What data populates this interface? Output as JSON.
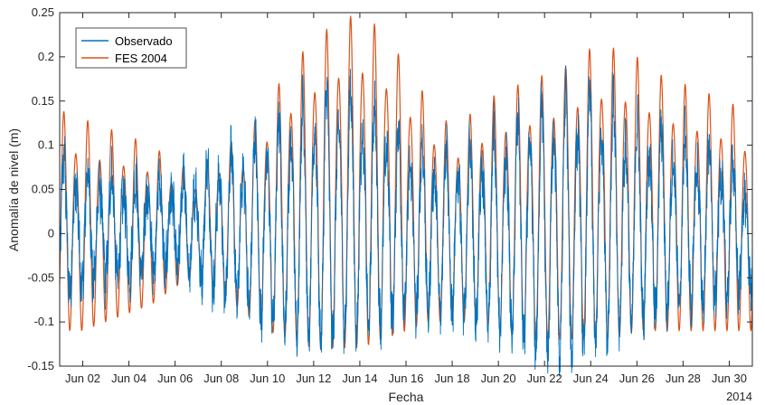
{
  "chart_data": {
    "type": "line",
    "title": "",
    "xlabel": "Fecha",
    "ylabel": "Anomalía de nivel (m)",
    "x_unit": "days (June 2014)",
    "xlim": [
      1,
      31
    ],
    "ylim": [
      -0.15,
      0.25
    ],
    "x_tick_values": [
      2,
      4,
      6,
      8,
      10,
      12,
      14,
      16,
      18,
      20,
      22,
      24,
      26,
      28,
      30
    ],
    "x_tick_labels": [
      "Jun 02",
      "Jun 04",
      "Jun 06",
      "Jun 08",
      "Jun 10",
      "Jun 12",
      "Jun 14",
      "Jun 16",
      "Jun 18",
      "Jun 20",
      "Jun 22",
      "Jun 24",
      "Jun 26",
      "Jun 28",
      "Jun 30"
    ],
    "x_secondary_label": "2014",
    "y_ticks": [
      -0.15,
      -0.1,
      -0.05,
      0,
      0.05,
      0.1,
      0.15,
      0.2,
      0.25
    ],
    "y_tick_labels": [
      "-0.15",
      "-0.1",
      "-0.05",
      "0",
      "0.05",
      "0.1",
      "0.15",
      "0.2",
      "0.25"
    ],
    "grid": false,
    "legend_position": "top-left",
    "series": [
      {
        "name": "Observado",
        "color": "#0072BD",
        "description": "observed sea level anomaly, semidiurnal oscillation with high-frequency noise",
        "daily_high_peak_m": [
          0.09,
          0.07,
          0.07,
          0.06,
          0.06,
          0.06,
          0.07,
          0.09,
          0.1,
          0.12,
          0.14,
          0.16,
          0.17,
          0.16,
          0.14,
          0.11,
          0.1,
          0.1,
          0.1,
          0.12,
          0.13,
          0.15,
          0.16,
          0.16,
          0.15,
          0.13,
          0.12,
          0.11,
          0.1,
          0.09,
          0.05
        ],
        "daily_low_trough_m": [
          -0.07,
          -0.06,
          -0.05,
          -0.05,
          -0.04,
          -0.04,
          -0.05,
          -0.07,
          -0.08,
          -0.1,
          -0.11,
          -0.12,
          -0.12,
          -0.11,
          -0.1,
          -0.09,
          -0.09,
          -0.09,
          -0.1,
          -0.11,
          -0.12,
          -0.14,
          -0.14,
          -0.13,
          -0.11,
          -0.1,
          -0.09,
          -0.08,
          -0.08,
          -0.07,
          -0.06
        ]
      },
      {
        "name": "FES 2004",
        "color": "#D95319",
        "description": "FES2004 tidal model prediction, smooth semidiurnal tide",
        "daily_high_peak_m": [
          0.14,
          0.13,
          0.12,
          0.11,
          0.1,
          0.08,
          0.07,
          0.1,
          0.11,
          0.15,
          0.19,
          0.22,
          0.24,
          0.25,
          0.23,
          0.19,
          0.15,
          0.12,
          0.14,
          0.16,
          0.17,
          0.18,
          0.19,
          0.21,
          0.21,
          0.2,
          0.18,
          0.17,
          0.16,
          0.15,
          0.13
        ],
        "daily_low_trough_m": [
          -0.11,
          -0.11,
          -0.1,
          -0.09,
          -0.08,
          -0.06,
          -0.05,
          -0.07,
          -0.09,
          -0.11,
          -0.12,
          -0.13,
          -0.13,
          -0.13,
          -0.12,
          -0.11,
          -0.1,
          -0.1,
          -0.1,
          -0.11,
          -0.12,
          -0.12,
          -0.12,
          -0.12,
          -0.12,
          -0.11,
          -0.11,
          -0.11,
          -0.11,
          -0.11,
          -0.11
        ]
      }
    ]
  }
}
